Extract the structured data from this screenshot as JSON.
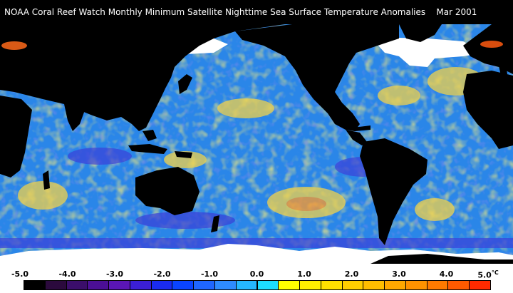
{
  "title": "NOAA Coral Reef Watch Monthly Minimum Satellite Nighttime Sea Surface Temperature Anomalies    Mar 2001",
  "legend": {
    "tick_labels": [
      "-5.0",
      "-4.0",
      "-3.0",
      "-2.0",
      "-1.0",
      "0.0",
      "1.0",
      "2.0",
      "3.0",
      "4.0",
      "5.0"
    ],
    "unit": "°C",
    "colors": [
      "#000000",
      "#2b0a3d",
      "#3b0e6b",
      "#4b0f96",
      "#5a16b5",
      "#3b1fd6",
      "#1a2bf0",
      "#0a44ff",
      "#1f66ff",
      "#2e8bff",
      "#25b7ff",
      "#1ddcff",
      "#ffff00",
      "#fff000",
      "#ffe000",
      "#ffcf00",
      "#ffbe00",
      "#ffa800",
      "#ff9200",
      "#ff7a00",
      "#ff5a00",
      "#ff2a00"
    ]
  },
  "colors": {
    "land": "#000000",
    "ice": "#ffffff",
    "ocean_base": "#2a86e8",
    "anomaly_warm": "#f1d24b",
    "anomaly_hot": "#ff8a2a",
    "anomaly_cool": "#3b40d8"
  }
}
